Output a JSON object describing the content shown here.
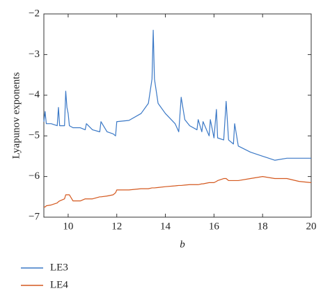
{
  "chart_data": {
    "type": "line",
    "x_label": "b",
    "y_label": "Lyapunov exponents",
    "xlim": [
      9,
      20
    ],
    "ylim": [
      -7,
      -2
    ],
    "xticks": [
      10,
      12,
      14,
      16,
      18,
      20
    ],
    "yticks": [
      {
        "value": -2,
        "label": "−2"
      },
      {
        "value": -3,
        "label": "−3"
      },
      {
        "value": -4,
        "label": "−4"
      },
      {
        "value": -5,
        "label": "−5"
      },
      {
        "value": -6,
        "label": "−6"
      },
      {
        "value": -7,
        "label": "−7"
      }
    ],
    "x": [
      9,
      9.05,
      9.1,
      9.3,
      9.55,
      9.6,
      9.65,
      9.85,
      9.9,
      9.95,
      10.0,
      10.05,
      10.2,
      10.5,
      10.7,
      10.75,
      11,
      11.3,
      11.35,
      11.6,
      11.85,
      11.95,
      12.0,
      12.5,
      13,
      13.3,
      13.45,
      13.5,
      13.55,
      13.7,
      14,
      14.4,
      14.55,
      14.65,
      14.8,
      15,
      15.3,
      15.35,
      15.5,
      15.55,
      15.8,
      15.85,
      16,
      16.1,
      16.15,
      16.4,
      16.5,
      16.6,
      16.8,
      16.85,
      17,
      17.5,
      18,
      18.5,
      19,
      19.5,
      20
    ],
    "series": [
      {
        "name": "LE3",
        "color": "#3a78c6",
        "values": [
          -4.65,
          -4.4,
          -4.7,
          -4.7,
          -4.75,
          -4.3,
          -4.75,
          -4.75,
          -3.9,
          -4.3,
          -4.45,
          -4.75,
          -4.8,
          -4.8,
          -4.85,
          -4.7,
          -4.85,
          -4.9,
          -4.65,
          -4.9,
          -4.95,
          -5.0,
          -4.65,
          -4.62,
          -4.45,
          -4.2,
          -3.6,
          -2.4,
          -3.6,
          -4.2,
          -4.45,
          -4.7,
          -4.9,
          -4.05,
          -4.6,
          -4.75,
          -4.85,
          -4.6,
          -4.9,
          -4.65,
          -5.0,
          -4.6,
          -5.05,
          -4.35,
          -5.05,
          -5.1,
          -4.15,
          -5.1,
          -5.2,
          -4.7,
          -5.25,
          -5.4,
          -5.5,
          -5.6,
          -5.55,
          -5.55,
          -5.55
        ]
      },
      {
        "name": "LE4",
        "color": "#d4581e",
        "values": [
          -6.75,
          -6.75,
          -6.72,
          -6.7,
          -6.65,
          -6.62,
          -6.6,
          -6.55,
          -6.45,
          -6.45,
          -6.45,
          -6.45,
          -6.6,
          -6.6,
          -6.55,
          -6.55,
          -6.55,
          -6.5,
          -6.5,
          -6.48,
          -6.45,
          -6.4,
          -6.33,
          -6.33,
          -6.3,
          -6.3,
          -6.28,
          -6.28,
          -6.28,
          -6.27,
          -6.25,
          -6.23,
          -6.22,
          -6.22,
          -6.21,
          -6.2,
          -6.2,
          -6.2,
          -6.18,
          -6.18,
          -6.15,
          -6.15,
          -6.15,
          -6.12,
          -6.1,
          -6.05,
          -6.05,
          -6.1,
          -6.1,
          -6.1,
          -6.1,
          -6.05,
          -6.0,
          -6.05,
          -6.05,
          -6.12,
          -6.15
        ]
      }
    ]
  }
}
